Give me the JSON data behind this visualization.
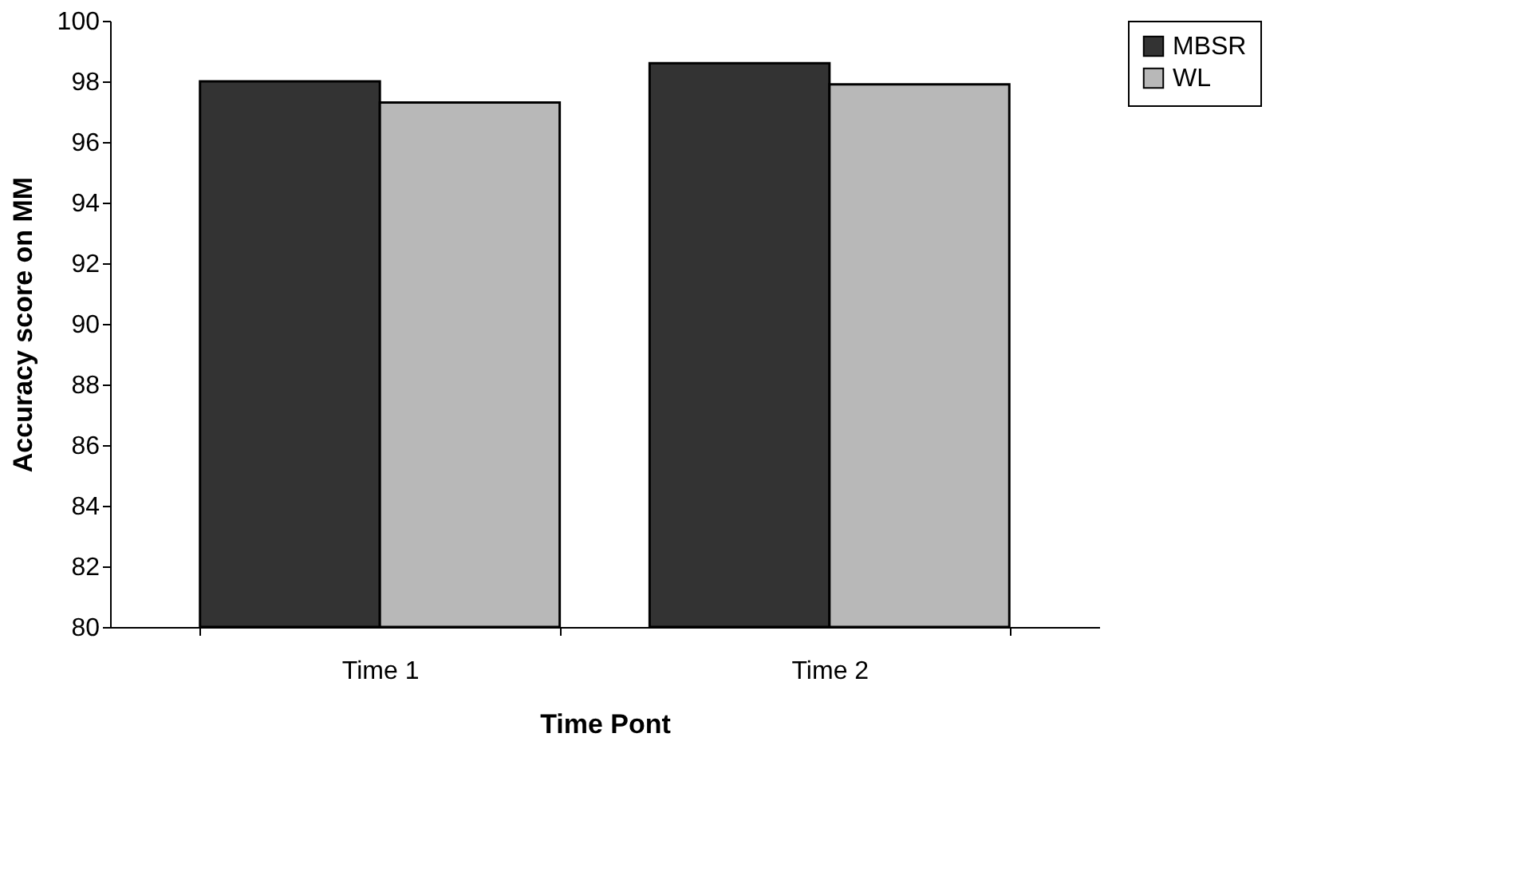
{
  "chart_data": {
    "type": "bar",
    "xlabel": "Time Pont",
    "ylabel": "Accuracy score on MM",
    "categories": [
      "Time 1",
      "Time 2"
    ],
    "series": [
      {
        "name": "MBSR",
        "color": "#333333",
        "values": [
          98.0,
          98.6
        ]
      },
      {
        "name": "WL",
        "color": "#b8b8b8",
        "values": [
          97.3,
          97.9
        ]
      }
    ],
    "ylim": [
      80,
      100
    ],
    "yticks": [
      80,
      82,
      84,
      86,
      88,
      90,
      92,
      94,
      96,
      98,
      100
    ],
    "grid": false,
    "legend": "right"
  }
}
